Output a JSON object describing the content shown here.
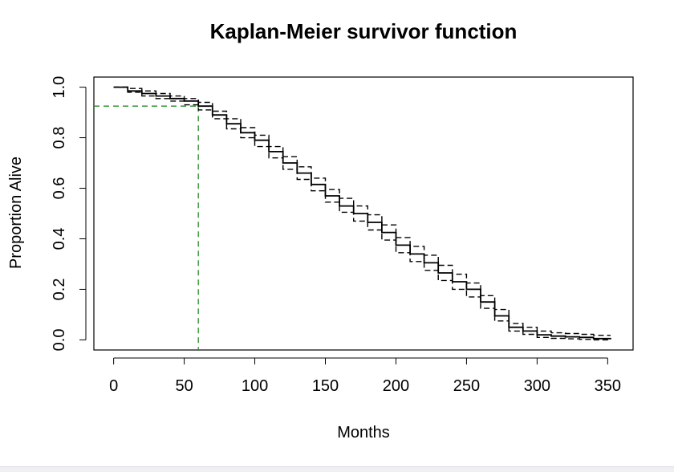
{
  "chart_data": {
    "type": "line",
    "title": "Kaplan-Meier survivor function",
    "xlabel": "Months",
    "ylabel": "Proportion Alive",
    "xlim": [
      -14,
      368
    ],
    "ylim": [
      -0.04,
      1.04
    ],
    "xticks": [
      0,
      50,
      100,
      150,
      200,
      250,
      300,
      350
    ],
    "yticks": [
      0.0,
      0.2,
      0.4,
      0.6,
      0.8,
      1.0
    ],
    "ytick_labels": [
      "0.0",
      "0.2",
      "0.4",
      "0.6",
      "0.8",
      "1.0"
    ],
    "grid": false,
    "x": [
      0,
      10,
      20,
      30,
      40,
      50,
      60,
      70,
      80,
      90,
      100,
      110,
      120,
      130,
      140,
      150,
      160,
      170,
      180,
      190,
      200,
      210,
      220,
      230,
      240,
      250,
      260,
      270,
      280,
      290,
      300,
      310,
      320,
      330,
      340,
      352
    ],
    "series": [
      {
        "values": [
          1.0,
          0.985,
          0.975,
          0.965,
          0.955,
          0.945,
          0.925,
          0.89,
          0.855,
          0.82,
          0.79,
          0.745,
          0.7,
          0.66,
          0.615,
          0.57,
          0.53,
          0.5,
          0.465,
          0.425,
          0.375,
          0.34,
          0.305,
          0.265,
          0.23,
          0.2,
          0.15,
          0.095,
          0.05,
          0.035,
          0.02,
          0.015,
          0.012,
          0.01,
          0.005,
          0.002
        ],
        "color": "#000000",
        "style": "solid"
      },
      {
        "values": [
          1.0,
          0.995,
          0.985,
          0.975,
          0.965,
          0.955,
          0.94,
          0.905,
          0.875,
          0.84,
          0.81,
          0.765,
          0.725,
          0.685,
          0.64,
          0.595,
          0.56,
          0.53,
          0.495,
          0.455,
          0.405,
          0.37,
          0.335,
          0.295,
          0.26,
          0.225,
          0.175,
          0.12,
          0.065,
          0.05,
          0.035,
          0.028,
          0.025,
          0.022,
          0.018,
          0.018
        ],
        "color": "#000000",
        "style": "dashed"
      },
      {
        "values": [
          1.0,
          0.98,
          0.965,
          0.955,
          0.945,
          0.93,
          0.91,
          0.875,
          0.835,
          0.8,
          0.765,
          0.72,
          0.675,
          0.635,
          0.59,
          0.545,
          0.505,
          0.47,
          0.435,
          0.395,
          0.345,
          0.31,
          0.275,
          0.235,
          0.2,
          0.17,
          0.125,
          0.075,
          0.035,
          0.022,
          0.01,
          0.006,
          0.004,
          0.002,
          0.0,
          0.0
        ],
        "color": "#000000",
        "style": "dashed"
      }
    ],
    "reference_lines": {
      "x_value": 60,
      "y_value": 0.925,
      "color": "#228b22",
      "style": "dashed"
    }
  }
}
